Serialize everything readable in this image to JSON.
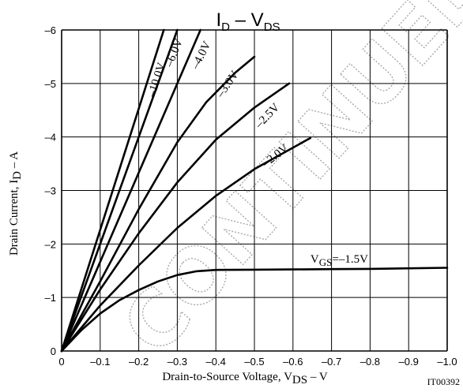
{
  "chart_data": {
    "type": "line",
    "title": {
      "main": "I",
      "sub1": "D",
      "dash": " – ",
      "v": "V",
      "sub2": "DS"
    },
    "xlabel": {
      "main": "Drain-to-Source Voltage, V",
      "sub": "DS",
      "tail": "  –  V"
    },
    "ylabel": {
      "main": "Drain Current, I",
      "sub": "D",
      "tail": "  –  A"
    },
    "xlim": [
      0,
      -1.0
    ],
    "ylim": [
      0,
      -6
    ],
    "x_ticks": [
      "0",
      "–0.1",
      "–0.2",
      "–0.3",
      "–0.4",
      "–0.5",
      "–0.6",
      "–0.7",
      "–0.8",
      "–0.9",
      "–1.0"
    ],
    "y_ticks": [
      "0",
      "–1",
      "–2",
      "–3",
      "–4",
      "–5",
      "–6"
    ],
    "grid": true,
    "series": [
      {
        "name": "–10.0V",
        "x": [
          0,
          -0.265
        ],
        "y": [
          0,
          -6.0
        ]
      },
      {
        "name": "–6.0V",
        "x": [
          0,
          -0.3
        ],
        "y": [
          0,
          -6.0
        ]
      },
      {
        "name": "–4.0V",
        "x": [
          0,
          -0.36
        ],
        "y": [
          0,
          -6.0
        ]
      },
      {
        "name": "–3.0V",
        "x": [
          0,
          -0.1,
          -0.2,
          -0.3,
          -0.375,
          -0.45,
          -0.5
        ],
        "y": [
          0,
          -1.3,
          -2.65,
          -3.9,
          -4.65,
          -5.2,
          -5.5
        ]
      },
      {
        "name": "–2.5V",
        "x": [
          0,
          -0.1,
          -0.2,
          -0.3,
          -0.4,
          -0.5,
          -0.59
        ],
        "y": [
          0,
          -1.15,
          -2.2,
          -3.15,
          -3.95,
          -4.55,
          -5.0
        ]
      },
      {
        "name": "–2.0V",
        "x": [
          0,
          -0.1,
          -0.2,
          -0.3,
          -0.4,
          -0.5,
          -0.6,
          -0.645
        ],
        "y": [
          0,
          -0.85,
          -1.6,
          -2.3,
          -2.9,
          -3.4,
          -3.8,
          -3.98
        ]
      },
      {
        "name": "V_GS=–1.5V",
        "x": [
          0,
          -0.05,
          -0.1,
          -0.15,
          -0.2,
          -0.25,
          -0.3,
          -0.35,
          -0.4,
          -0.5,
          -0.6,
          -0.7,
          -0.8,
          -0.9,
          -1.0
        ],
        "y": [
          0,
          -0.38,
          -0.7,
          -0.95,
          -1.14,
          -1.3,
          -1.42,
          -1.49,
          -1.515,
          -1.52,
          -1.525,
          -1.53,
          -1.535,
          -1.545,
          -1.555
        ]
      }
    ],
    "labels": [
      {
        "text": "–10.0V",
        "at_x": -0.255,
        "at_y": -5.05,
        "rotate": -72
      },
      {
        "text": "–6.0V",
        "at_x": -0.3,
        "at_y": -5.55,
        "rotate": -68
      },
      {
        "text": "–4.0V",
        "at_x": -0.37,
        "at_y": -5.5,
        "rotate": -63
      },
      {
        "text": "–3.0V",
        "at_x": -0.438,
        "at_y": -4.95,
        "rotate": -55
      },
      {
        "text": "–2.5V",
        "at_x": -0.54,
        "at_y": -4.35,
        "rotate": -46
      },
      {
        "text": "–2.0V",
        "at_x": -0.56,
        "at_y": -3.6,
        "rotate": -38
      },
      {
        "text_parts": [
          "V",
          "GS",
          "=–1.5V"
        ],
        "at_x": -0.72,
        "at_y": -1.65,
        "rotate": 0
      }
    ]
  },
  "part_code": "IT00392",
  "watermark": "CONTINUED"
}
